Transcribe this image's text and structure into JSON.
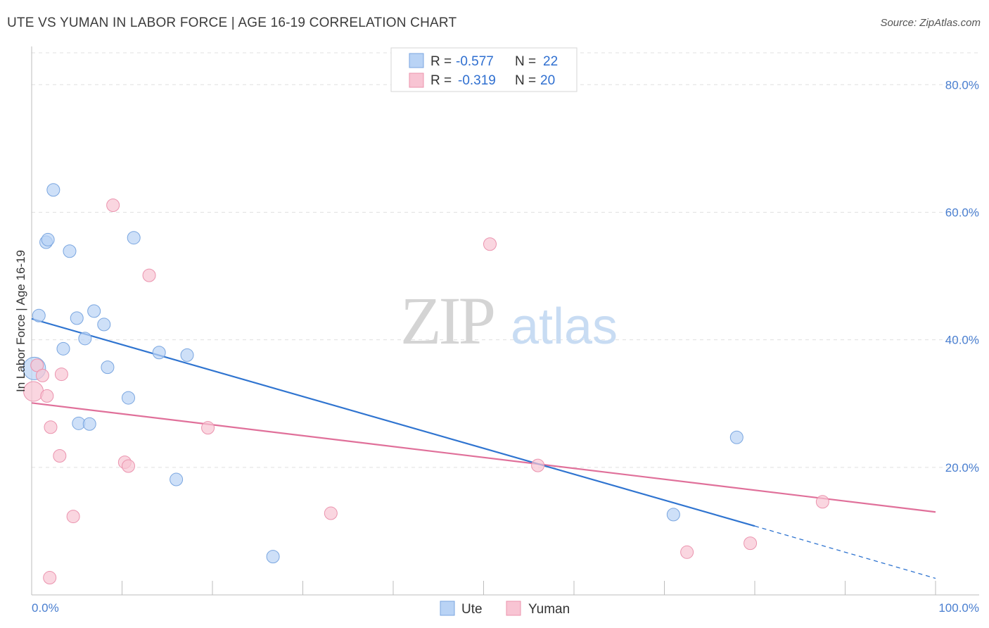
{
  "title": "UTE VS YUMAN IN LABOR FORCE | AGE 16-19 CORRELATION CHART",
  "source": "Source: ZipAtlas.com",
  "watermark": {
    "zip": "ZIP",
    "atlas": "atlas"
  },
  "colors": {
    "ute_fill": "#b9d3f5",
    "ute_stroke": "#7aa6e0",
    "ute_line": "#2f74d0",
    "yuman_fill": "#f8c4d3",
    "yuman_stroke": "#eb93ae",
    "yuman_line": "#e0709a",
    "tick_text": "#4a7fd0",
    "grid": "#e0e0e0"
  },
  "legend": {
    "rows": [
      {
        "series": "ute",
        "r_label": "R =",
        "r_value": "-0.577",
        "n_label": "N =",
        "n_value": "22"
      },
      {
        "series": "yuman",
        "r_label": "R =",
        "r_value": "-0.319",
        "n_label": "N =",
        "n_value": "20"
      }
    ]
  },
  "bottom_legend": {
    "ute": "Ute",
    "yuman": "Yuman"
  },
  "chart_data": {
    "type": "scatter",
    "title": "UTE VS YUMAN IN LABOR FORCE | AGE 16-19 CORRELATION CHART",
    "xlabel": "",
    "ylabel": "In Labor Force | Age 16-19",
    "xlim": [
      0,
      100
    ],
    "ylim": [
      0,
      85
    ],
    "x_tick_labels": [
      "0.0%",
      "100.0%"
    ],
    "y_ticks": [
      20,
      40,
      60,
      80
    ],
    "y_tick_labels": [
      "20.0%",
      "40.0%",
      "60.0%",
      "80.0%"
    ],
    "grid": true,
    "series": [
      {
        "name": "Ute",
        "x": [
          0.3,
          2.4,
          1.6,
          1.8,
          4.2,
          0.8,
          5.0,
          6.9,
          3.5,
          5.9,
          8.0,
          11.3,
          14.1,
          17.2,
          8.4,
          10.7,
          5.2,
          6.4,
          16.0,
          26.7,
          71.0,
          78.0
        ],
        "y": [
          35.5,
          63.5,
          55.3,
          55.7,
          53.9,
          43.8,
          43.4,
          44.5,
          38.6,
          40.2,
          42.4,
          56.0,
          38.0,
          37.6,
          35.7,
          30.9,
          26.9,
          26.8,
          18.1,
          6.0,
          12.6,
          24.7
        ],
        "sizes": [
          16,
          9,
          9,
          9,
          9,
          9,
          9,
          9,
          9,
          9,
          9,
          9,
          9,
          9,
          9,
          9,
          9,
          9,
          9,
          9,
          9,
          9
        ],
        "trend": {
          "x0": 0,
          "y0": 43.3,
          "x1": 80,
          "y1": 10.8,
          "dash_to_x": 100,
          "dash_to_y": 2.6
        }
      },
      {
        "name": "Yuman",
        "x": [
          0.2,
          0.6,
          1.2,
          3.3,
          1.7,
          9.0,
          13.0,
          50.7,
          2.1,
          3.1,
          19.5,
          2.0,
          10.3,
          10.7,
          4.6,
          33.1,
          56.0,
          72.5,
          79.5,
          87.5
        ],
        "y": [
          31.9,
          36.0,
          34.4,
          34.6,
          31.2,
          61.1,
          50.1,
          55.0,
          26.3,
          21.8,
          26.2,
          2.7,
          20.8,
          20.2,
          12.3,
          12.8,
          20.3,
          6.7,
          8.1,
          14.6
        ],
        "sizes": [
          14,
          9,
          9,
          9,
          9,
          9,
          9,
          9,
          9,
          9,
          9,
          9,
          9,
          9,
          9,
          9,
          9,
          9,
          9,
          9
        ],
        "trend": {
          "x0": 0,
          "y0": 30.1,
          "x1": 100,
          "y1": 13.0
        }
      }
    ]
  }
}
